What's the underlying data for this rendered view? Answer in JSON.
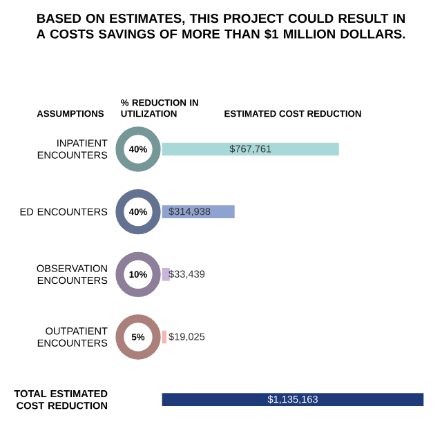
{
  "chart_data": {
    "type": "bar",
    "orientation": "horizontal",
    "title": "BASED ON ESTIMATES, THIS PROJECT COULD RESULT IN A COSTS SAVINGS OF MORE THAN $1 MILLION DOLLARS.",
    "xlabel": "ESTIMATED COST REDUCTION",
    "categories": [
      "INPATIENT ENCOUNTERS",
      "ED ENCOUNTERS",
      "OBSERVATION ENCOUNTERS",
      "OUTPATIENT ENCOUNTERS",
      "TOTAL ESTIMATED COST REDUCTION"
    ],
    "values": [
      767761,
      314938,
      33439,
      19025,
      1135163
    ],
    "colors": [
      "#a8d8d8",
      "#8fa3d1",
      "#c9b5db",
      "#f4b6b0",
      "#1f3a7a"
    ],
    "value_labels": [
      "$767,761",
      "$314,938",
      "$33,439",
      "$19,025",
      "$1,135,163"
    ],
    "annotations": [
      "ASSUMPTIONS",
      "% REDUCTION IN UTILIZATION",
      "40%",
      "40%",
      "10%",
      "5%"
    ]
  }
}
